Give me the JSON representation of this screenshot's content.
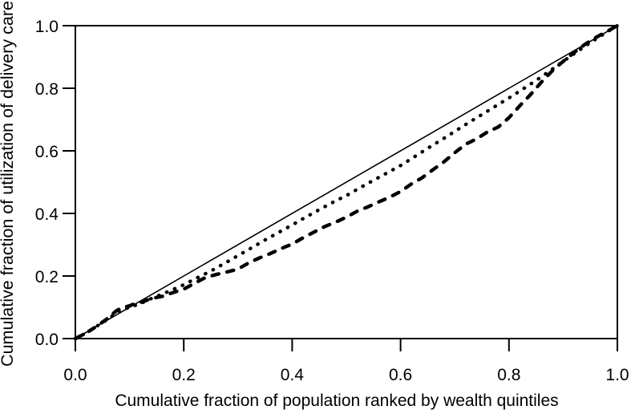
{
  "figure": {
    "background_color": "#ffffff",
    "line_color": "#000000"
  },
  "chart_data": {
    "type": "line",
    "title": "",
    "xlabel": "Cumulative fraction of population ranked by wealth quintiles",
    "ylabel": "Cumulative fraction of utilization of delivery care",
    "xlim": [
      0.0,
      1.0
    ],
    "ylim": [
      0.0,
      1.0
    ],
    "xticks": [
      "0.0",
      "0.2",
      "0.4",
      "0.6",
      "0.8",
      "1.0"
    ],
    "yticks": [
      "0.0",
      "0.2",
      "0.4",
      "0.6",
      "0.8",
      "1.0"
    ],
    "grid": false,
    "legend_position": "none",
    "series": [
      {
        "name": "line-of-equality",
        "style": "solid",
        "color": "#000000",
        "x": [
          0.0,
          1.0
        ],
        "y": [
          0.0,
          1.0
        ]
      },
      {
        "name": "concentration-curve-dotted",
        "style": "dotted",
        "color": "#000000",
        "x": [
          0.0,
          0.02,
          0.04,
          0.06,
          0.08,
          0.1,
          0.12,
          0.14,
          0.16,
          0.18,
          0.2,
          0.22,
          0.25,
          0.28,
          0.3,
          0.32,
          0.35,
          0.38,
          0.4,
          0.42,
          0.45,
          0.48,
          0.5,
          0.52,
          0.55,
          0.58,
          0.6,
          0.62,
          0.65,
          0.68,
          0.7,
          0.72,
          0.75,
          0.78,
          0.8,
          0.82,
          0.85,
          0.88,
          0.9,
          0.92,
          0.95,
          0.98,
          1.0
        ],
        "y": [
          0.0,
          0.018,
          0.04,
          0.062,
          0.088,
          0.1,
          0.112,
          0.128,
          0.142,
          0.157,
          0.172,
          0.19,
          0.216,
          0.245,
          0.265,
          0.285,
          0.315,
          0.344,
          0.363,
          0.383,
          0.412,
          0.44,
          0.457,
          0.477,
          0.506,
          0.534,
          0.553,
          0.575,
          0.608,
          0.64,
          0.662,
          0.684,
          0.716,
          0.748,
          0.769,
          0.791,
          0.825,
          0.861,
          0.886,
          0.91,
          0.946,
          0.979,
          1.0
        ]
      },
      {
        "name": "concentration-curve-dashed",
        "style": "dashed",
        "color": "#000000",
        "x": [
          0.0,
          0.02,
          0.04,
          0.06,
          0.075,
          0.085,
          0.1,
          0.11,
          0.125,
          0.14,
          0.16,
          0.18,
          0.2,
          0.22,
          0.24,
          0.26,
          0.28,
          0.3,
          0.32,
          0.34,
          0.36,
          0.38,
          0.4,
          0.42,
          0.44,
          0.46,
          0.48,
          0.5,
          0.52,
          0.54,
          0.56,
          0.58,
          0.6,
          0.62,
          0.64,
          0.66,
          0.68,
          0.7,
          0.72,
          0.74,
          0.76,
          0.78,
          0.8,
          0.82,
          0.84,
          0.86,
          0.88,
          0.9,
          0.92,
          0.94,
          0.96,
          0.98,
          1.0
        ],
        "y": [
          0.0,
          0.018,
          0.04,
          0.065,
          0.088,
          0.098,
          0.105,
          0.112,
          0.118,
          0.128,
          0.135,
          0.147,
          0.158,
          0.177,
          0.195,
          0.205,
          0.213,
          0.222,
          0.242,
          0.258,
          0.272,
          0.288,
          0.302,
          0.322,
          0.34,
          0.358,
          0.372,
          0.388,
          0.407,
          0.421,
          0.437,
          0.452,
          0.47,
          0.494,
          0.514,
          0.54,
          0.565,
          0.594,
          0.621,
          0.638,
          0.66,
          0.676,
          0.706,
          0.744,
          0.78,
          0.82,
          0.856,
          0.886,
          0.914,
          0.94,
          0.962,
          0.981,
          1.0
        ]
      }
    ]
  }
}
